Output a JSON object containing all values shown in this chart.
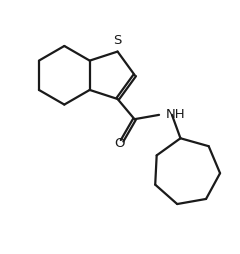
{
  "background_color": "#ffffff",
  "line_color": "#1a1a1a",
  "line_width": 1.6,
  "fig_width": 2.4,
  "fig_height": 2.54,
  "dpi": 100,
  "S_label": "S",
  "NH_label": "NH",
  "O_label": "O",
  "font_size_S": 9.5,
  "font_size_NH": 9.5,
  "font_size_O": 9.5
}
